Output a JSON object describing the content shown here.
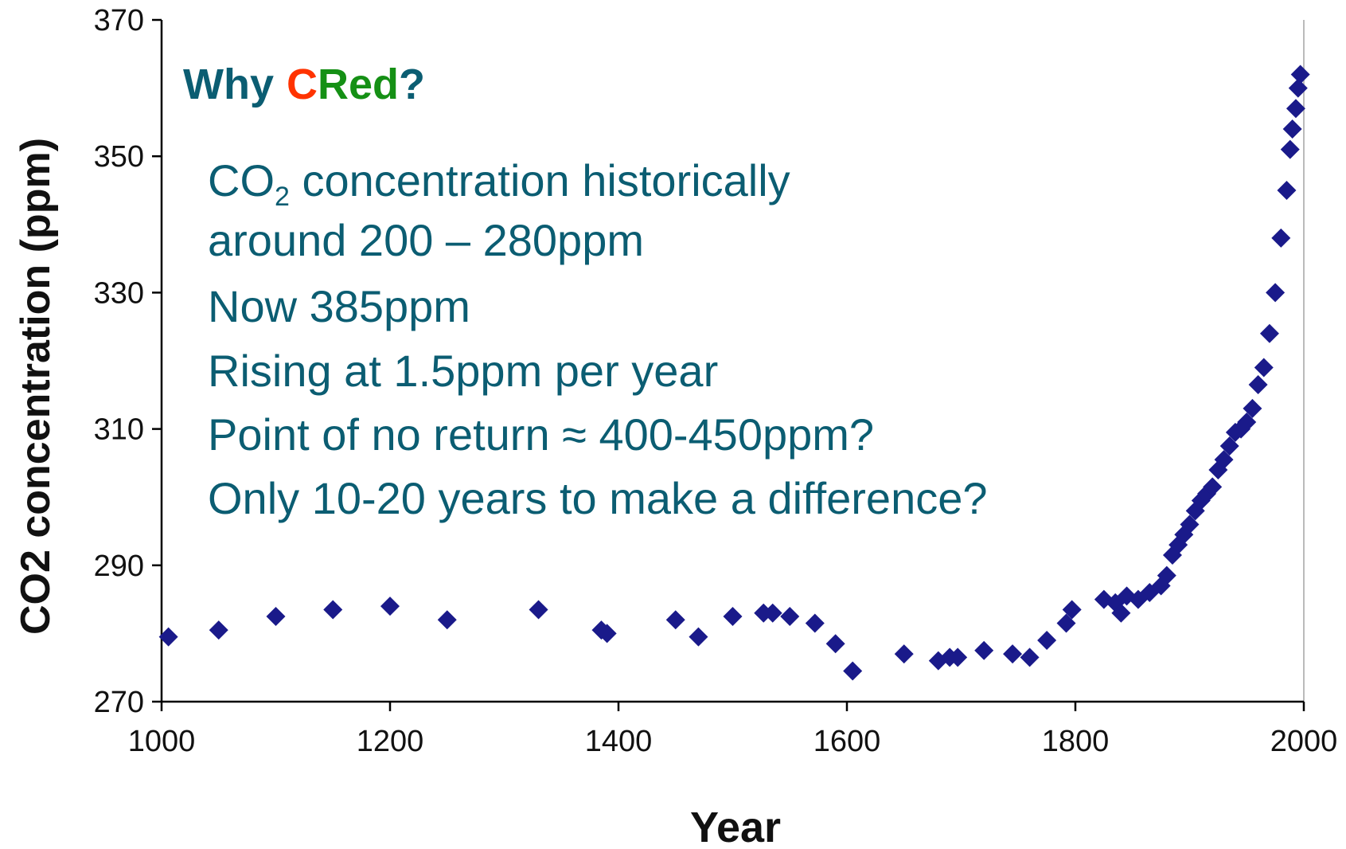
{
  "chart_data": {
    "type": "scatter",
    "heading": [
      "Why",
      "C",
      "Red",
      "?"
    ],
    "heading_colors": [
      "#0b5d72",
      "#ff3300",
      "#159015",
      "#0b5d72"
    ],
    "notes": [
      [
        "CO",
        "2",
        " concentration historically"
      ],
      [
        "around 200 – 280ppm"
      ],
      [
        "Now 385ppm"
      ],
      [
        "Rising at 1.5ppm per year"
      ],
      [
        "Point of no return ≈ 400-450ppm?"
      ],
      [
        "Only 10-20 years to make a difference?"
      ]
    ],
    "x_label": "Year",
    "y_label": "CO2 concentration (ppm)",
    "color": "#1a1a8a",
    "x": [
      1006,
      1050,
      1100,
      1150,
      1200,
      1250,
      1330,
      1385,
      1390,
      1450,
      1470,
      1500,
      1527,
      1535,
      1550,
      1572,
      1590,
      1605,
      1650,
      1680,
      1690,
      1697,
      1720,
      1745,
      1760,
      1775,
      1792,
      1797,
      1825,
      1835,
      1840,
      1845,
      1855,
      1865,
      1875,
      1880,
      1885,
      1890,
      1895,
      1900,
      1905,
      1910,
      1915,
      1920,
      1925,
      1930,
      1935,
      1940,
      1945,
      1950,
      1955,
      1960,
      1965,
      1970,
      1975,
      1980,
      1985,
      1988,
      1990,
      1993,
      1995,
      1997
    ],
    "values": [
      279.5,
      280.5,
      282.5,
      283.5,
      284,
      282,
      283.5,
      280.5,
      280,
      282,
      279.5,
      282.5,
      283,
      283,
      282.5,
      281.5,
      278.5,
      274.5,
      277,
      276,
      276.5,
      276.5,
      277.5,
      277,
      276.5,
      279,
      281.5,
      283.5,
      285,
      284.5,
      283,
      285.5,
      285,
      286,
      287,
      288.5,
      291.5,
      293,
      294.5,
      296,
      298,
      299.5,
      300.5,
      301.5,
      304,
      305.5,
      307.5,
      309.5,
      310,
      311,
      313,
      316.5,
      319,
      324,
      330,
      338,
      345,
      351,
      354,
      357,
      360,
      362
    ],
    "xlim": [
      1000,
      2000
    ],
    "xticks": [
      1000,
      1200,
      1400,
      1600,
      1800,
      2000
    ],
    "ylim": [
      270,
      370
    ],
    "yticks": [
      270,
      290,
      310,
      330,
      350,
      370
    ]
  }
}
